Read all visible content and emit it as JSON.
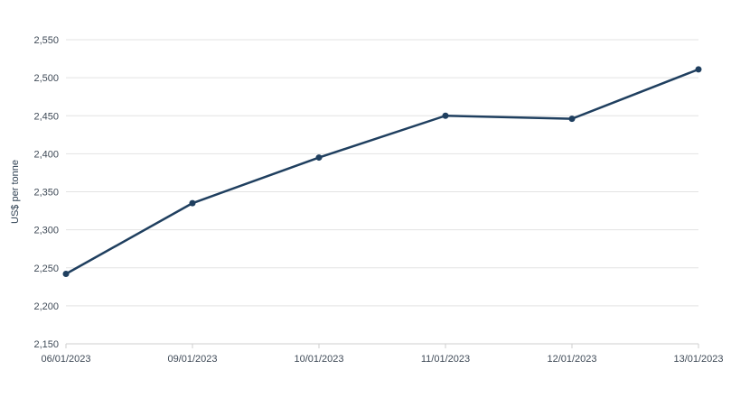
{
  "chart_data": {
    "type": "line",
    "categories": [
      "06/01/2023",
      "09/01/2023",
      "10/01/2023",
      "11/01/2023",
      "12/01/2023",
      "13/01/2023"
    ],
    "series": [
      {
        "values": [
          2242,
          2335,
          2395,
          2450,
          2446,
          2511
        ]
      }
    ],
    "ylabel": "US$ per tonne",
    "ylim": [
      2150,
      2550
    ],
    "yticks": [
      2150,
      2200,
      2250,
      2300,
      2350,
      2400,
      2450,
      2500,
      2550
    ],
    "ytick_labels": [
      "2,150",
      "2,200",
      "2,250",
      "2,300",
      "2,350",
      "2,400",
      "2,450",
      "2,500",
      "2,550"
    ],
    "grid": true,
    "legend": "none",
    "colors": {
      "line": "#1f3f5f",
      "grid": "#e3e3e3",
      "text": "#3f4a57"
    }
  }
}
